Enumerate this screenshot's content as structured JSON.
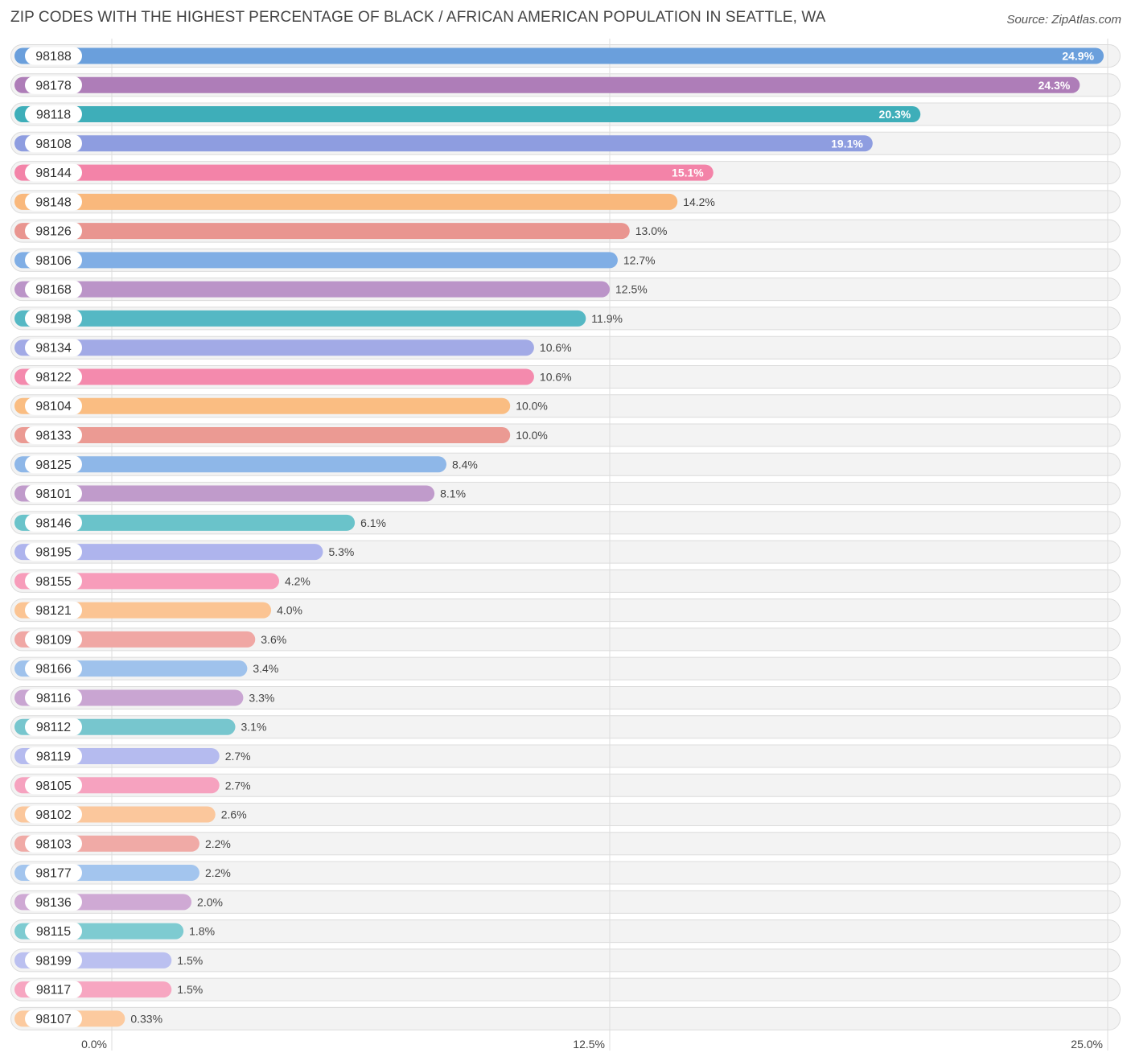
{
  "chart_data": {
    "type": "bar",
    "orientation": "horizontal",
    "title": "ZIP CODES WITH THE HIGHEST PERCENTAGE OF BLACK / AFRICAN AMERICAN POPULATION IN SEATTLE, WA",
    "source": "Source: ZipAtlas.com",
    "xlim": [
      0,
      25
    ],
    "x_ticks": [
      "0.0%",
      "12.5%",
      "25.0%"
    ],
    "x_tick_values": [
      0,
      12.5,
      25
    ],
    "categories": [
      "98188",
      "98178",
      "98118",
      "98108",
      "98144",
      "98148",
      "98126",
      "98106",
      "98168",
      "98198",
      "98134",
      "98122",
      "98104",
      "98133",
      "98125",
      "98101",
      "98146",
      "98195",
      "98155",
      "98121",
      "98109",
      "98166",
      "98116",
      "98112",
      "98119",
      "98105",
      "98102",
      "98103",
      "98177",
      "98136",
      "98115",
      "98199",
      "98117",
      "98107"
    ],
    "values": [
      24.9,
      24.3,
      20.3,
      19.1,
      15.1,
      14.2,
      13.0,
      12.7,
      12.5,
      11.9,
      10.6,
      10.6,
      10.0,
      10.0,
      8.4,
      8.1,
      6.1,
      5.3,
      4.2,
      4.0,
      3.6,
      3.4,
      3.3,
      3.1,
      2.7,
      2.7,
      2.6,
      2.2,
      2.2,
      2.0,
      1.8,
      1.5,
      1.5,
      0.33
    ],
    "value_labels": [
      "24.9%",
      "24.3%",
      "20.3%",
      "19.1%",
      "15.1%",
      "14.2%",
      "13.0%",
      "12.7%",
      "12.5%",
      "11.9%",
      "10.6%",
      "10.6%",
      "10.0%",
      "10.0%",
      "8.4%",
      "8.1%",
      "6.1%",
      "5.3%",
      "4.2%",
      "4.0%",
      "3.6%",
      "3.4%",
      "3.3%",
      "3.1%",
      "2.7%",
      "2.7%",
      "2.6%",
      "2.2%",
      "2.2%",
      "2.0%",
      "1.8%",
      "1.5%",
      "1.5%",
      "0.33%"
    ],
    "colors": [
      "#6a9fdc",
      "#ae7db8",
      "#3eaeb9",
      "#8e9de0",
      "#f383a8",
      "#f9b87c",
      "#e99590",
      "#80aee5",
      "#bb94c8",
      "#55b8c4",
      "#a2aae6",
      "#f48aad",
      "#fabd82",
      "#eb9a93",
      "#8eb7e8",
      "#c09bcb",
      "#6ac3ca",
      "#aeb4ed",
      "#f79cba",
      "#fbc493",
      "#f0a7a4",
      "#9fc2ec",
      "#c9a5d2",
      "#77c6ce",
      "#b5bbef",
      "#f6a2bf",
      "#fbc79c",
      "#f0aaa6",
      "#a3c5ee",
      "#cfa9d4",
      "#7ecbd1",
      "#bbc0f0",
      "#f7a6c1",
      "#fcca9f"
    ],
    "inside_label_count": 5
  }
}
